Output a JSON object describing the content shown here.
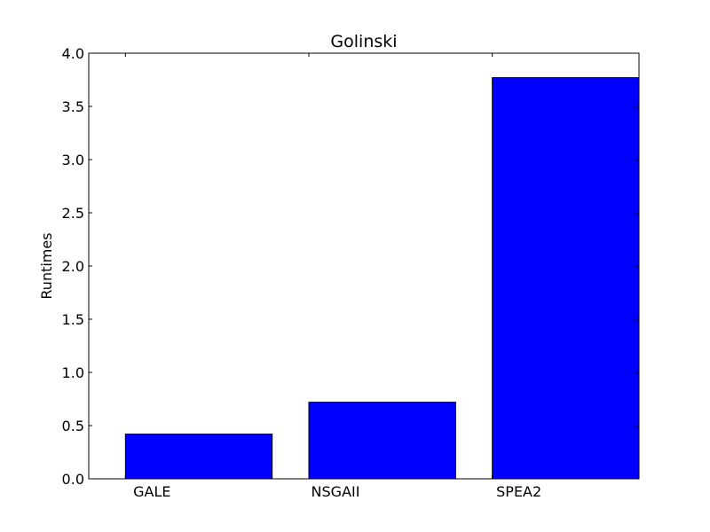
{
  "chart_data": {
    "type": "bar",
    "title": "Golinski",
    "xlabel": "",
    "ylabel": "Runtimes",
    "categories": [
      "GALE",
      "NSGAII",
      "SPEA2"
    ],
    "values": [
      0.42,
      0.72,
      3.77
    ],
    "ylim": [
      0,
      4.0
    ],
    "yticks": [
      "0.0",
      "0.5",
      "1.0",
      "1.5",
      "2.0",
      "2.5",
      "3.0",
      "3.5",
      "4.0"
    ],
    "bar_color": "#0000ff",
    "grid": false,
    "legend": "none"
  }
}
